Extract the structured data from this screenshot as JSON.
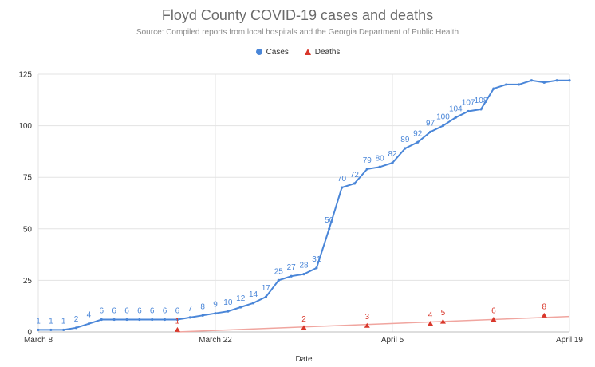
{
  "chart_data": {
    "type": "line",
    "title": "Floyd County COVID-19 cases and deaths",
    "subtitle": "Source: Compiled reports from local hospitals and the Georgia Department of Public Health",
    "xlabel": "Date",
    "ylabel": "",
    "ylim": [
      0,
      125
    ],
    "yticks": [
      "0",
      "25",
      "50",
      "75",
      "100",
      "125"
    ],
    "x_start": "March 8",
    "x_end": "April 19",
    "xticks": [
      {
        "label": "March 8",
        "day": 0
      },
      {
        "label": "March 22",
        "day": 14
      },
      {
        "label": "April 5",
        "day": 28
      },
      {
        "label": "April 19",
        "day": 42
      }
    ],
    "grid": true,
    "legend_position": "top-center",
    "series": [
      {
        "name": "Cases",
        "color": "#4a86d8",
        "marker": "circle",
        "points": [
          {
            "day": 0,
            "value": 1,
            "label": "1"
          },
          {
            "day": 1,
            "value": 1,
            "label": "1"
          },
          {
            "day": 2,
            "value": 1,
            "label": "1"
          },
          {
            "day": 3,
            "value": 2,
            "label": "2"
          },
          {
            "day": 4,
            "value": 4,
            "label": "4"
          },
          {
            "day": 5,
            "value": 6,
            "label": "6"
          },
          {
            "day": 6,
            "value": 6,
            "label": "6"
          },
          {
            "day": 7,
            "value": 6,
            "label": "6"
          },
          {
            "day": 8,
            "value": 6,
            "label": "6"
          },
          {
            "day": 9,
            "value": 6,
            "label": "6"
          },
          {
            "day": 10,
            "value": 6,
            "label": "6"
          },
          {
            "day": 11,
            "value": 6,
            "label": "6"
          },
          {
            "day": 12,
            "value": 7,
            "label": "7"
          },
          {
            "day": 13,
            "value": 8,
            "label": "8"
          },
          {
            "day": 14,
            "value": 9,
            "label": "9"
          },
          {
            "day": 15,
            "value": 10,
            "label": "10"
          },
          {
            "day": 16,
            "value": 12,
            "label": "12"
          },
          {
            "day": 17,
            "value": 14,
            "label": "14"
          },
          {
            "day": 18,
            "value": 17,
            "label": "17"
          },
          {
            "day": 19,
            "value": 25,
            "label": "25"
          },
          {
            "day": 20,
            "value": 27,
            "label": "27"
          },
          {
            "day": 21,
            "value": 28,
            "label": "28"
          },
          {
            "day": 22,
            "value": 31,
            "label": "31"
          },
          {
            "day": 23,
            "value": 50,
            "label": "50"
          },
          {
            "day": 24,
            "value": 70,
            "label": "70"
          },
          {
            "day": 25,
            "value": 72,
            "label": "72"
          },
          {
            "day": 26,
            "value": 79,
            "label": "79"
          },
          {
            "day": 27,
            "value": 80,
            "label": "80"
          },
          {
            "day": 28,
            "value": 82,
            "label": "82"
          },
          {
            "day": 29,
            "value": 89,
            "label": "89"
          },
          {
            "day": 30,
            "value": 92,
            "label": "92"
          },
          {
            "day": 31,
            "value": 97,
            "label": "97"
          },
          {
            "day": 32,
            "value": 100,
            "label": "100"
          },
          {
            "day": 33,
            "value": 104,
            "label": "104"
          },
          {
            "day": 34,
            "value": 107,
            "label": "107"
          },
          {
            "day": 35,
            "value": 108,
            "label": "108"
          },
          {
            "day": 36,
            "value": 118,
            "label": ""
          },
          {
            "day": 37,
            "value": 120,
            "label": ""
          },
          {
            "day": 38,
            "value": 120,
            "label": ""
          },
          {
            "day": 39,
            "value": 122,
            "label": ""
          },
          {
            "day": 40,
            "value": 121,
            "label": ""
          },
          {
            "day": 41,
            "value": 122,
            "label": ""
          },
          {
            "day": 42,
            "value": 122,
            "label": ""
          }
        ]
      },
      {
        "name": "Deaths",
        "color": "#d9372b",
        "trend_color": "#f0a59f",
        "marker": "triangle",
        "points": [
          {
            "day": 11,
            "value": 1,
            "label": "1"
          },
          {
            "day": 21,
            "value": 2,
            "label": "2"
          },
          {
            "day": 26,
            "value": 3,
            "label": "3"
          },
          {
            "day": 31,
            "value": 4,
            "label": "4"
          },
          {
            "day": 32,
            "value": 5,
            "label": "5"
          },
          {
            "day": 36,
            "value": 6,
            "label": "6"
          },
          {
            "day": 40,
            "value": 8,
            "label": "8"
          }
        ],
        "trend": [
          {
            "day": 11,
            "value": 0
          },
          {
            "day": 42,
            "value": 7.5
          }
        ]
      }
    ]
  }
}
